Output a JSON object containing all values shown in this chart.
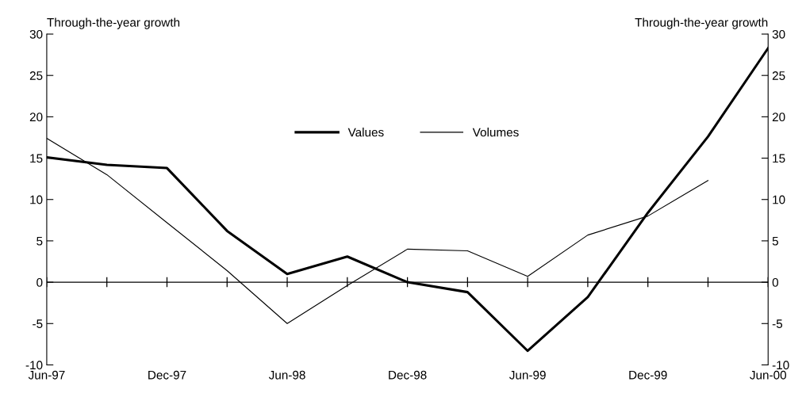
{
  "chart_data": {
    "type": "line",
    "ylabel": "Through-the-year growth",
    "y2label": "Through-the-year growth",
    "categories": [
      "Jun-97",
      null,
      "Dec-97",
      null,
      "Jun-98",
      null,
      "Dec-98",
      null,
      "Jun-99",
      null,
      "Dec-99",
      null,
      "Jun-00"
    ],
    "series": [
      {
        "name": "Values",
        "color": "#000000",
        "values": [
          15.1,
          14.2,
          13.8,
          6.2,
          1.0,
          3.1,
          0.0,
          -1.2,
          -8.3,
          -1.8,
          8.4,
          17.6,
          28.3
        ]
      },
      {
        "name": "Volumes",
        "color": "#000000",
        "values": [
          17.4,
          13.0,
          7.2,
          1.4,
          -5.0,
          -0.4,
          4.0,
          3.8,
          0.7,
          5.7,
          8.0,
          12.3,
          null
        ]
      }
    ],
    "ylim": [
      -10,
      30
    ],
    "yticks": [
      -10,
      -5,
      0,
      5,
      10,
      15,
      20,
      25,
      30
    ],
    "y2lim": [
      -10,
      30
    ],
    "y2ticks": [
      -10,
      -5,
      0,
      5,
      10,
      15,
      20,
      25,
      30
    ],
    "ref_lines": [
      {
        "axis": "y",
        "value": 0,
        "color": "#000000"
      }
    ],
    "legend": "center",
    "marker": "none",
    "line_style": "solid"
  }
}
